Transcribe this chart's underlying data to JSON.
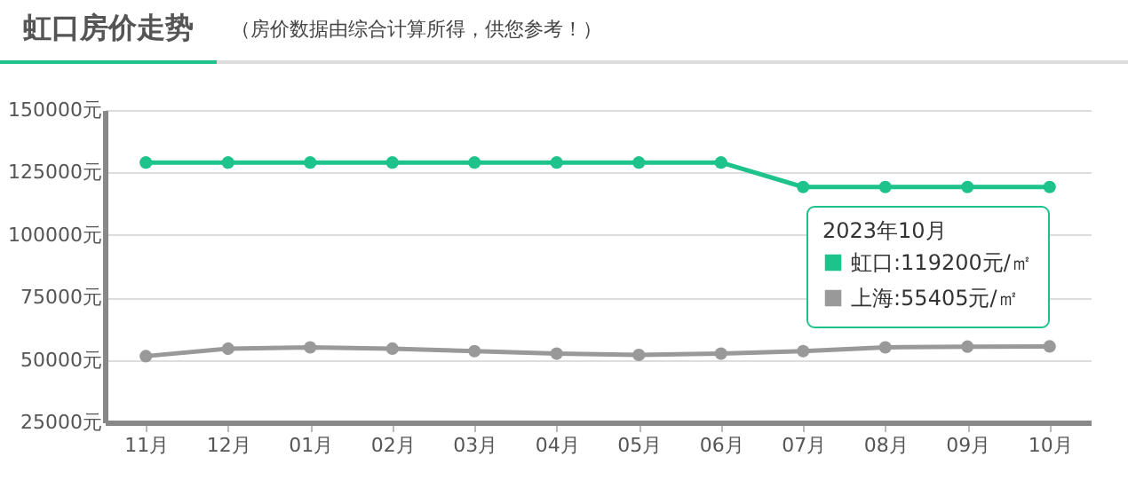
{
  "chart_data": {
    "type": "line",
    "title": "虹口房价走势",
    "subtitle": "（房价数据由综合计算所得，供您参考！）",
    "categories": [
      "11月",
      "12月",
      "01月",
      "02月",
      "03月",
      "04月",
      "05月",
      "06月",
      "07月",
      "08月",
      "09月",
      "10月"
    ],
    "series": [
      {
        "name": "虹口:119200元/㎡",
        "color": "#1ec28b",
        "values": [
          129000,
          129000,
          129000,
          129000,
          129000,
          129000,
          129000,
          129000,
          119200,
          119200,
          119200,
          119200
        ]
      },
      {
        "name": "上海:55405元/㎡",
        "color": "#999999",
        "values": [
          51500,
          54500,
          55000,
          54500,
          53500,
          52500,
          52000,
          52500,
          53500,
          55000,
          55300,
          55405
        ]
      }
    ],
    "legend_title": "2023年10月",
    "ylim": [
      25000,
      150000
    ],
    "yticks": [
      {
        "value": 25000,
        "label": "25000元"
      },
      {
        "value": 50000,
        "label": "50000元"
      },
      {
        "value": 75000,
        "label": "75000元"
      },
      {
        "value": 100000,
        "label": "100000元"
      },
      {
        "value": 125000,
        "label": "125000元"
      },
      {
        "value": 150000,
        "label": "150000元"
      }
    ],
    "grid": "y",
    "marker": "circle",
    "legend": "right"
  }
}
